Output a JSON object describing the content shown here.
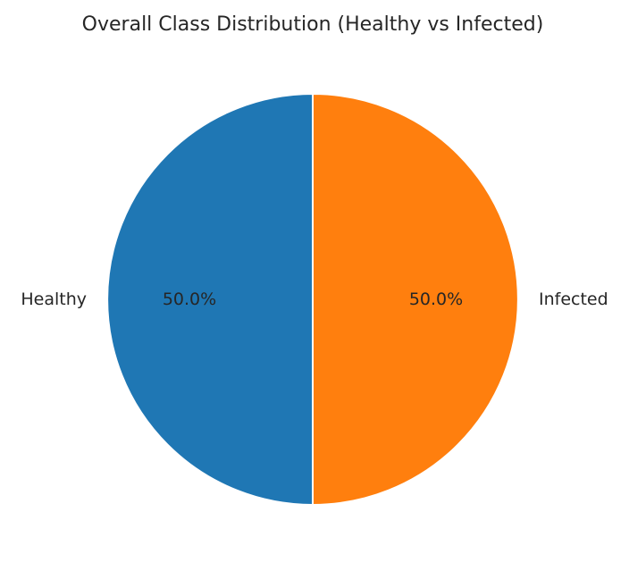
{
  "chart_data": {
    "type": "pie",
    "title": "Overall Class Distribution (Healthy vs Infected)",
    "start_angle_deg": 90,
    "direction": "counterclockwise",
    "slices": [
      {
        "label": "Healthy",
        "value": 50.0,
        "pct_label": "50.0%",
        "color": "#1f77b4"
      },
      {
        "label": "Infected",
        "value": 50.0,
        "pct_label": "50.0%",
        "color": "#ff7f0e"
      }
    ],
    "edge_color": "#ffffff"
  }
}
